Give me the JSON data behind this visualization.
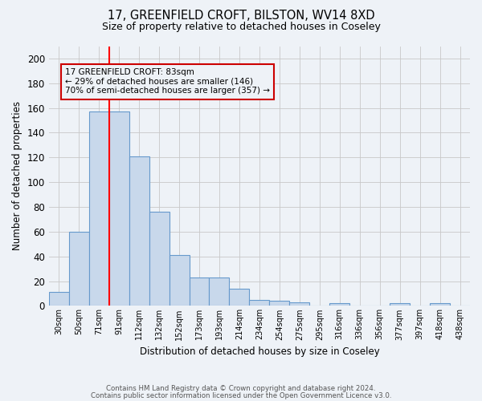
{
  "title1": "17, GREENFIELD CROFT, BILSTON, WV14 8XD",
  "title2": "Size of property relative to detached houses in Coseley",
  "xlabel": "Distribution of detached houses by size in Coseley",
  "ylabel": "Number of detached properties",
  "categories": [
    "30sqm",
    "50sqm",
    "71sqm",
    "91sqm",
    "112sqm",
    "132sqm",
    "152sqm",
    "173sqm",
    "193sqm",
    "214sqm",
    "234sqm",
    "254sqm",
    "275sqm",
    "295sqm",
    "316sqm",
    "336sqm",
    "356sqm",
    "377sqm",
    "397sqm",
    "418sqm",
    "438sqm"
  ],
  "values": [
    11,
    60,
    157,
    157,
    121,
    76,
    41,
    23,
    23,
    14,
    5,
    4,
    3,
    0,
    2,
    0,
    0,
    2,
    0,
    2,
    0
  ],
  "bar_color": "#c8d8eb",
  "bar_edge_color": "#6699cc",
  "ylim": [
    0,
    210
  ],
  "yticks": [
    0,
    20,
    40,
    60,
    80,
    100,
    120,
    140,
    160,
    180,
    200
  ],
  "vline_x": 2.5,
  "annotation_line1": "17 GREENFIELD CROFT: 83sqm",
  "annotation_line2": "← 29% of detached houses are smaller (146)",
  "annotation_line3": "70% of semi-detached houses are larger (357) →",
  "box_color": "#cc0000",
  "footer1": "Contains HM Land Registry data © Crown copyright and database right 2024.",
  "footer2": "Contains public sector information licensed under the Open Government Licence v3.0.",
  "bg_color": "#eef2f7",
  "grid_color": "#c8c8c8"
}
